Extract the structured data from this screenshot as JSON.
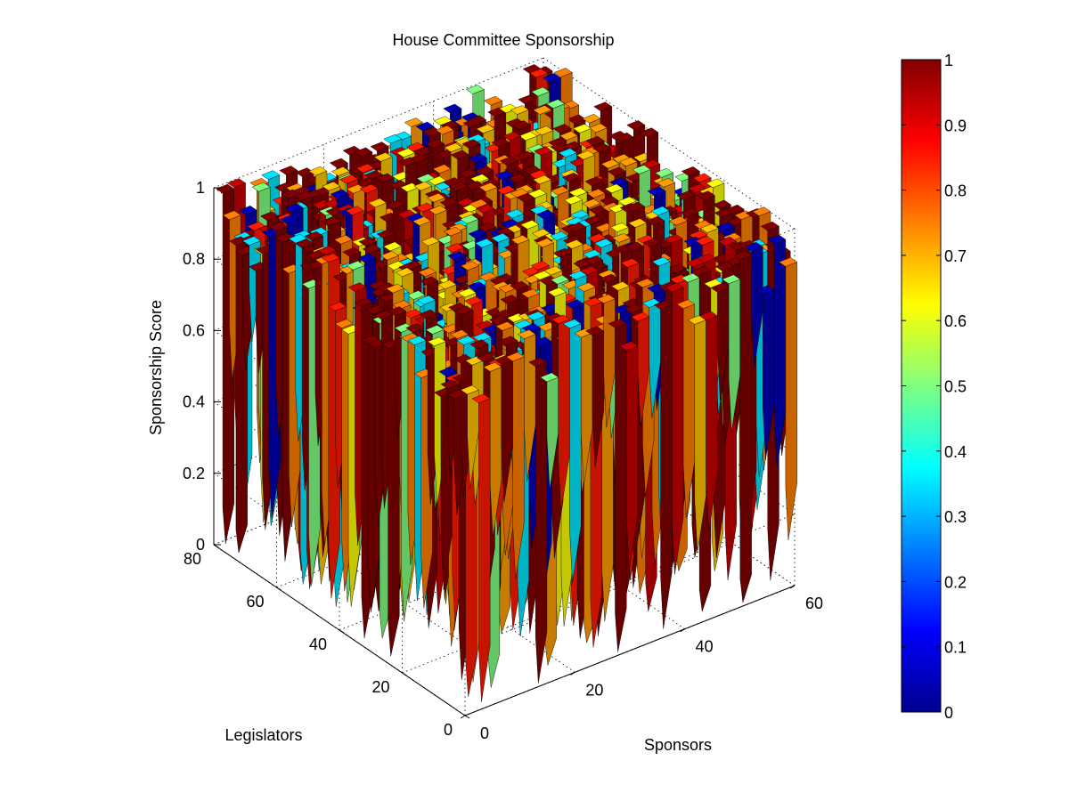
{
  "chart_data": {
    "type": "surface",
    "title": "House Committee Sponsorship",
    "xlabel": "Sponsors",
    "ylabel": "Legislators",
    "zlabel": "Sponsorship Score",
    "xlim": [
      0,
      60
    ],
    "ylim": [
      0,
      80
    ],
    "zlim": [
      0,
      1
    ],
    "x_ticks": [
      "0",
      "20",
      "40",
      "60"
    ],
    "y_ticks": [
      "0",
      "20",
      "40",
      "60",
      "80"
    ],
    "z_ticks": [
      "0",
      "0.2",
      "0.4",
      "0.6",
      "0.8",
      "1"
    ],
    "grid": true,
    "colormap": "jet",
    "colorbar": {
      "range": [
        0,
        1
      ],
      "ticks": [
        "0",
        "0.1",
        "0.2",
        "0.3",
        "0.4",
        "0.5",
        "0.6",
        "0.7",
        "0.8",
        "0.9",
        "1"
      ]
    }
  }
}
